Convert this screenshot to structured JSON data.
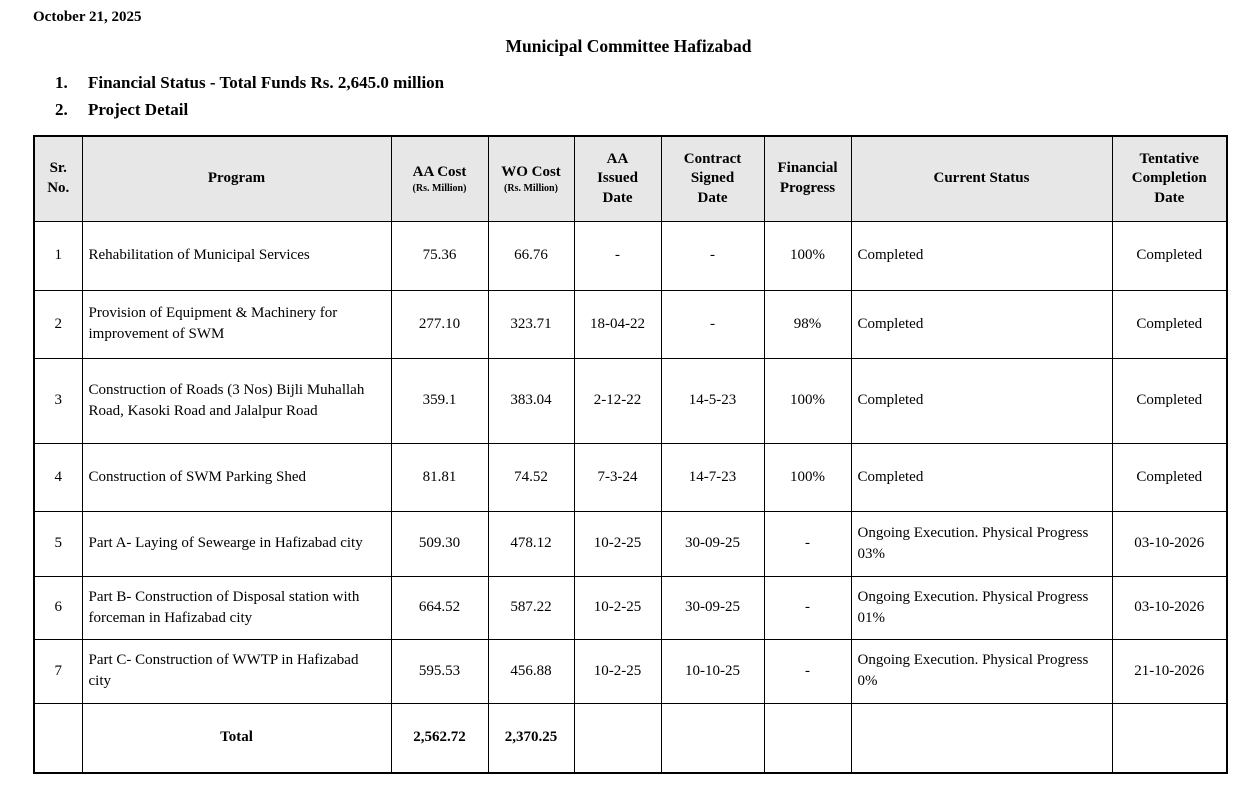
{
  "page": {
    "date": "October 21, 2025",
    "title": "Municipal Committee Hafizabad",
    "list": [
      {
        "number": "1.",
        "text": "Financial Status - Total Funds Rs. 2,645.0 million"
      },
      {
        "number": "2.",
        "text": "Project Detail"
      }
    ]
  },
  "table": {
    "columns": [
      {
        "id": "sr-no",
        "label": "Sr.\nNo.",
        "sub": ""
      },
      {
        "id": "program",
        "label": "Program",
        "sub": ""
      },
      {
        "id": "aa-cost",
        "label": "AA Cost",
        "sub": "(Rs. Million)"
      },
      {
        "id": "wo-cost",
        "label": "WO Cost",
        "sub": "(Rs. Million)"
      },
      {
        "id": "aa-issued-date",
        "label": "AA\nIssued\nDate",
        "sub": ""
      },
      {
        "id": "contract-signed-date",
        "label": "Contract\nSigned\nDate",
        "sub": ""
      },
      {
        "id": "financial-progress",
        "label": "Financial\nProgress",
        "sub": ""
      },
      {
        "id": "current-status",
        "label": "Current Status",
        "sub": ""
      },
      {
        "id": "tentative-completion-date",
        "label": "Tentative\nCompletion\nDate",
        "sub": ""
      }
    ],
    "rows": [
      [
        "1",
        "Rehabilitation of Municipal Services",
        "75.36",
        "66.76",
        "-",
        "-",
        "100%",
        "Completed",
        "Completed"
      ],
      [
        "2",
        "Provision of Equipment & Machinery for improvement of SWM",
        "277.10",
        "323.71",
        "18-04-22",
        "-",
        "98%",
        "Completed",
        "Completed"
      ],
      [
        "3",
        "Construction of Roads (3 Nos) Bijli Muhallah Road, Kasoki Road and Jalalpur Road",
        "359.1",
        "383.04",
        "2-12-22",
        "14-5-23",
        "100%",
        "Completed",
        "Completed"
      ],
      [
        "4",
        "Construction of SWM Parking Shed",
        "81.81",
        "74.52",
        "7-3-24",
        "14-7-23",
        "100%",
        "Completed",
        "Completed"
      ],
      [
        "5",
        "Part A- Laying of Sewearge in Hafizabad city",
        "509.30",
        "478.12",
        "10-2-25",
        "30-09-25",
        "-",
        "Ongoing Execution. Physical Progress 03%",
        "03-10-2026"
      ],
      [
        "6",
        "Part B- Construction of Disposal station with forceman in Hafizabad city",
        "664.52",
        "587.22",
        "10-2-25",
        "30-09-25",
        "-",
        "Ongoing Execution. Physical Progress 01%",
        "03-10-2026"
      ],
      [
        "7",
        "Part C- Construction of WWTP in Hafizabad city",
        "595.53",
        "456.88",
        "10-2-25",
        "10-10-25",
        "-",
        "Ongoing Execution. Physical Progress 0%",
        "21-10-2026"
      ]
    ],
    "total_row": [
      "",
      "Total",
      "2,562.72",
      "2,370.25",
      "",
      "",
      "",
      "",
      ""
    ]
  },
  "colors": {
    "header_bg": "#e7e7e7",
    "border": "#000000",
    "text": "#000000",
    "page_bg": "#ffffff"
  }
}
